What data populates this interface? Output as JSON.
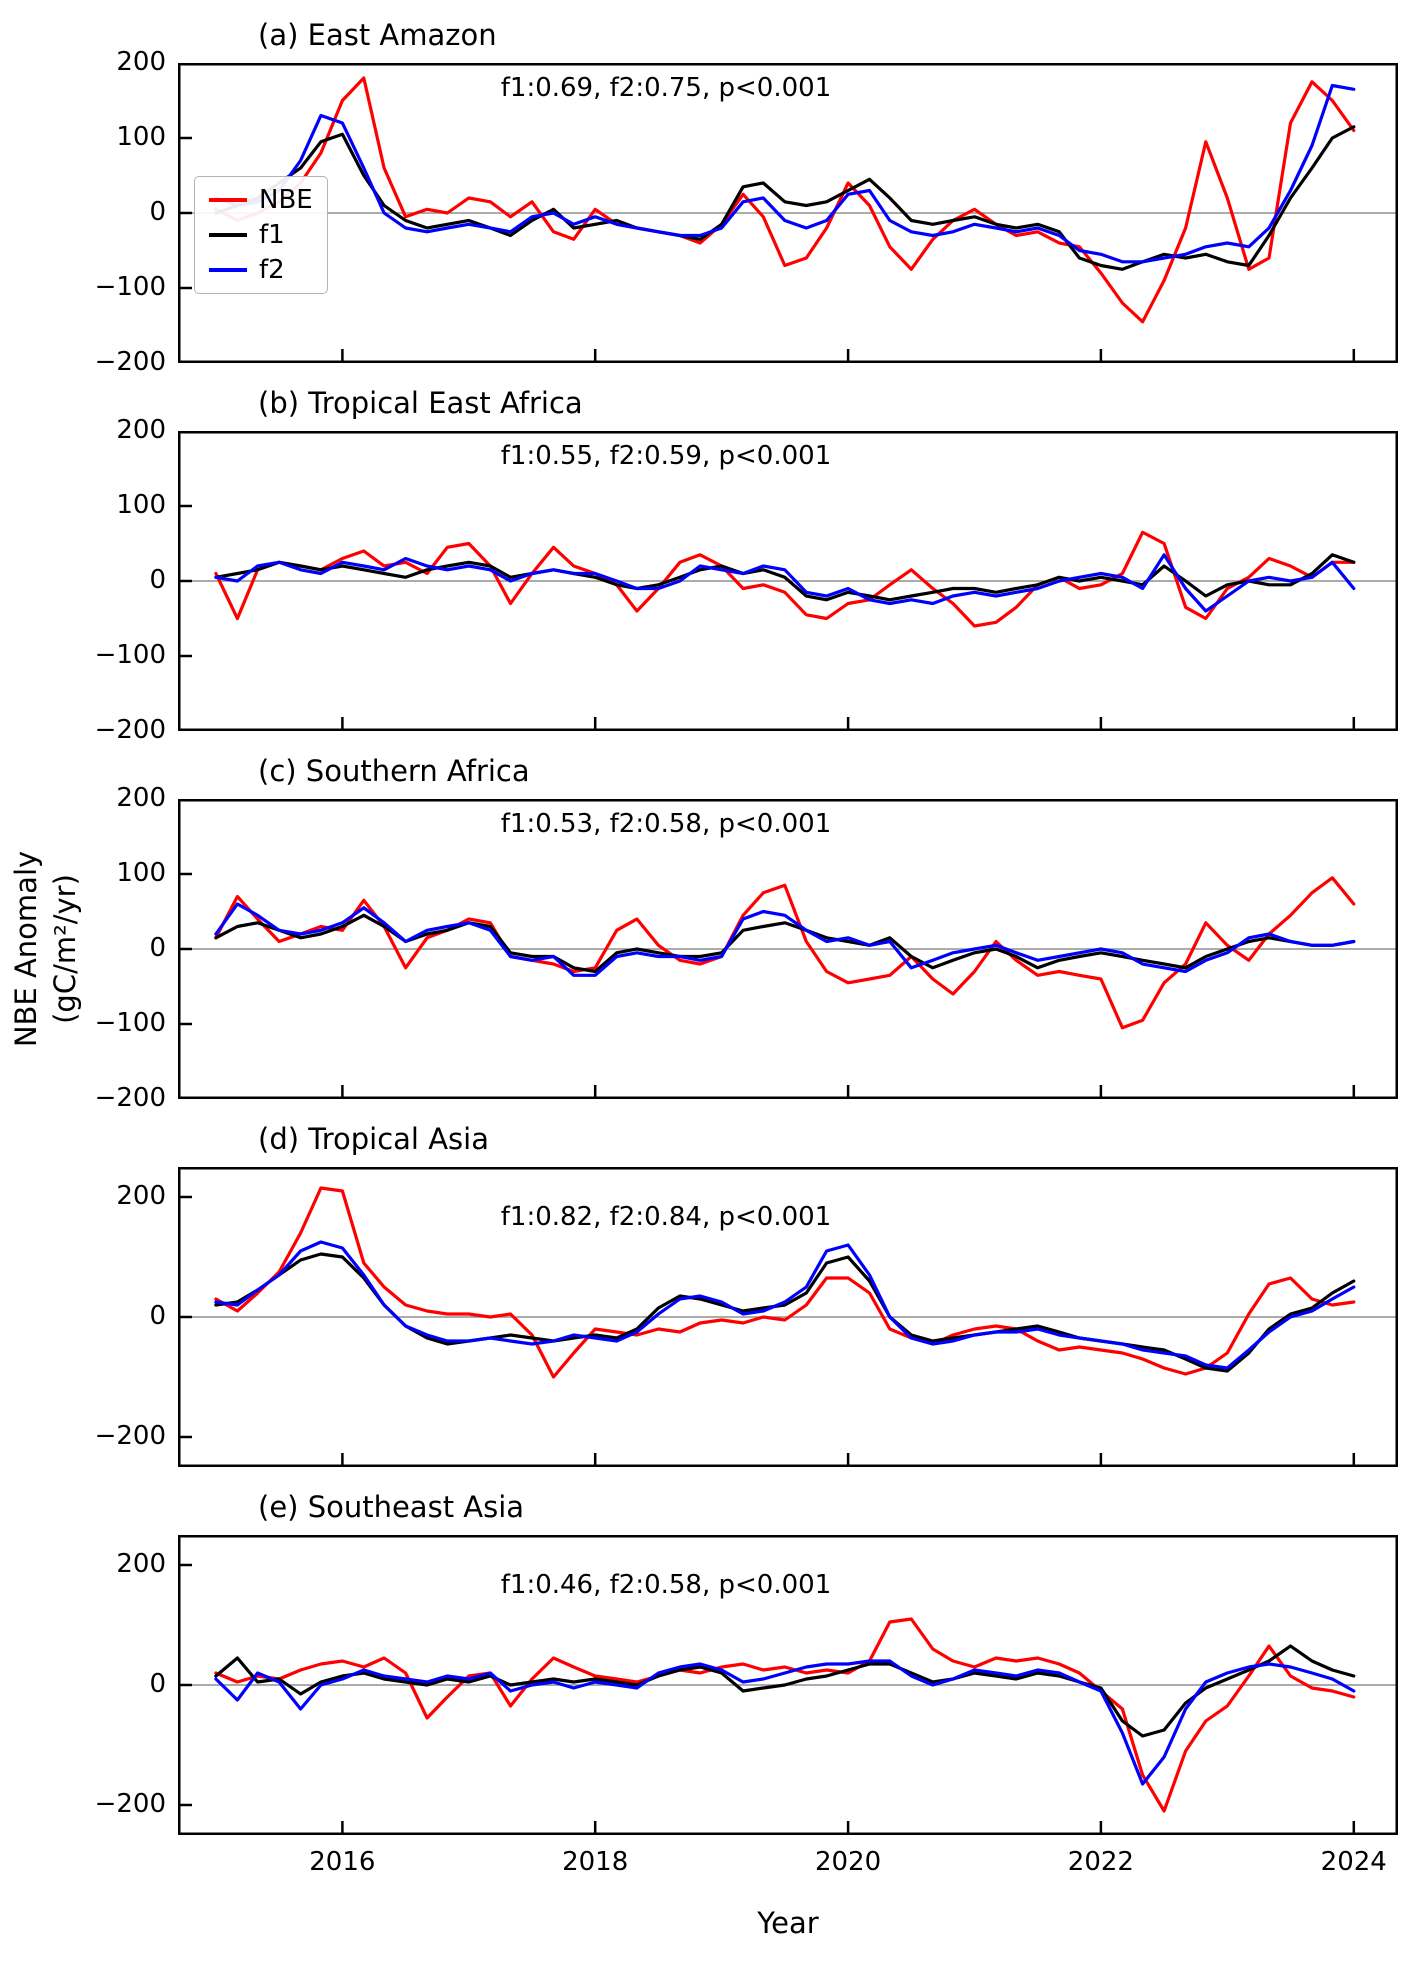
{
  "chart_data": {
    "type": "line",
    "x_label": "Year",
    "y_label": "NBE Anomaly (gC/m²/yr)",
    "y_label_line1": "NBE Anomaly",
    "y_label_line2": "(gC/m²/yr)",
    "legend_position": "left middle of panel (a)",
    "grid": false,
    "series_order": [
      "NBE",
      "f1",
      "f2"
    ],
    "colors": {
      "NBE": "#ff0000",
      "f1": "#000000",
      "f2": "#0000ff",
      "zero_line": "#909090",
      "axis": "#000000"
    },
    "xlim": [
      2014.7,
      2024.35
    ],
    "xticks": [
      2016,
      2018,
      2020,
      2022,
      2024
    ],
    "x": [
      2015.0,
      2015.17,
      2015.33,
      2015.5,
      2015.67,
      2015.83,
      2016.0,
      2016.17,
      2016.33,
      2016.5,
      2016.67,
      2016.83,
      2017.0,
      2017.17,
      2017.33,
      2017.5,
      2017.67,
      2017.83,
      2018.0,
      2018.17,
      2018.33,
      2018.5,
      2018.67,
      2018.83,
      2019.0,
      2019.17,
      2019.33,
      2019.5,
      2019.67,
      2019.83,
      2020.0,
      2020.17,
      2020.33,
      2020.5,
      2020.67,
      2020.83,
      2021.0,
      2021.17,
      2021.33,
      2021.5,
      2021.67,
      2021.83,
      2022.0,
      2022.17,
      2022.33,
      2022.5,
      2022.67,
      2022.83,
      2023.0,
      2023.17,
      2023.33,
      2023.5,
      2023.67,
      2023.83,
      2024.0
    ],
    "panels": [
      {
        "label": "(a) East Amazon",
        "annotation": "f1:0.69, f2:0.75, p<0.001",
        "ylim": [
          -200,
          200
        ],
        "yticks": [
          -200,
          -100,
          0,
          100,
          200
        ],
        "series": [
          {
            "name": "NBE",
            "values": [
              5,
              -10,
              0,
              15,
              40,
              80,
              150,
              180,
              60,
              -5,
              5,
              0,
              20,
              15,
              -5,
              15,
              -25,
              -35,
              5,
              -15,
              -20,
              -25,
              -30,
              -40,
              -15,
              25,
              -5,
              -70,
              -60,
              -20,
              40,
              10,
              -45,
              -75,
              -35,
              -10,
              5,
              -15,
              -30,
              -25,
              -40,
              -45,
              -80,
              -120,
              -145,
              -90,
              -20,
              95,
              20,
              -75,
              -60,
              120,
              175,
              150,
              110
            ]
          },
          {
            "name": "f1",
            "values": [
              0,
              10,
              20,
              40,
              60,
              95,
              105,
              50,
              10,
              -10,
              -20,
              -15,
              -10,
              -20,
              -30,
              -10,
              5,
              -20,
              -15,
              -10,
              -20,
              -25,
              -30,
              -35,
              -15,
              35,
              40,
              15,
              10,
              15,
              30,
              45,
              20,
              -10,
              -15,
              -10,
              -5,
              -15,
              -20,
              -15,
              -25,
              -60,
              -70,
              -75,
              -65,
              -55,
              -60,
              -55,
              -65,
              -70,
              -30,
              20,
              60,
              100,
              115
            ]
          },
          {
            "name": "f2",
            "values": [
              20,
              10,
              15,
              30,
              70,
              130,
              120,
              60,
              0,
              -20,
              -25,
              -20,
              -15,
              -20,
              -25,
              -5,
              0,
              -15,
              -5,
              -15,
              -20,
              -25,
              -30,
              -30,
              -20,
              15,
              20,
              -10,
              -20,
              -10,
              25,
              30,
              -10,
              -25,
              -30,
              -25,
              -15,
              -20,
              -25,
              -20,
              -30,
              -50,
              -55,
              -65,
              -65,
              -60,
              -55,
              -45,
              -40,
              -45,
              -20,
              30,
              90,
              170,
              165
            ]
          }
        ]
      },
      {
        "label": "(b) Tropical East Africa",
        "annotation": "f1:0.55, f2:0.59, p<0.001",
        "ylim": [
          -200,
          200
        ],
        "yticks": [
          -200,
          -100,
          0,
          100,
          200
        ],
        "series": [
          {
            "name": "NBE",
            "values": [
              10,
              -50,
              15,
              25,
              20,
              15,
              30,
              40,
              20,
              25,
              10,
              45,
              50,
              20,
              -30,
              10,
              45,
              20,
              10,
              -5,
              -40,
              -10,
              25,
              35,
              20,
              -10,
              -5,
              -15,
              -45,
              -50,
              -30,
              -25,
              -5,
              15,
              -10,
              -30,
              -60,
              -55,
              -35,
              -5,
              5,
              -10,
              -5,
              10,
              65,
              50,
              -35,
              -50,
              -10,
              5,
              30,
              20,
              5,
              25,
              25
            ]
          },
          {
            "name": "f1",
            "values": [
              5,
              10,
              15,
              25,
              20,
              15,
              20,
              15,
              10,
              5,
              15,
              20,
              25,
              20,
              5,
              10,
              15,
              10,
              5,
              -5,
              -10,
              -5,
              5,
              15,
              20,
              10,
              15,
              5,
              -20,
              -25,
              -15,
              -20,
              -25,
              -20,
              -15,
              -10,
              -10,
              -15,
              -10,
              -5,
              5,
              0,
              5,
              0,
              -5,
              20,
              0,
              -20,
              -5,
              0,
              -5,
              -5,
              10,
              35,
              25
            ]
          },
          {
            "name": "f2",
            "values": [
              5,
              0,
              20,
              25,
              15,
              10,
              25,
              20,
              15,
              30,
              20,
              15,
              20,
              15,
              0,
              10,
              15,
              10,
              10,
              0,
              -10,
              -10,
              0,
              20,
              15,
              10,
              20,
              15,
              -15,
              -20,
              -10,
              -25,
              -30,
              -25,
              -30,
              -20,
              -15,
              -20,
              -15,
              -10,
              0,
              5,
              10,
              5,
              -10,
              35,
              -10,
              -40,
              -20,
              0,
              5,
              0,
              5,
              25,
              -10
            ]
          }
        ]
      },
      {
        "label": "(c) Southern Africa",
        "annotation": "f1:0.53, f2:0.58, p<0.001",
        "ylim": [
          -200,
          200
        ],
        "yticks": [
          -200,
          -100,
          0,
          100,
          200
        ],
        "series": [
          {
            "name": "NBE",
            "values": [
              15,
              70,
              40,
              10,
              20,
              30,
              25,
              65,
              30,
              -25,
              15,
              25,
              40,
              35,
              -10,
              -15,
              -20,
              -30,
              -25,
              25,
              40,
              5,
              -15,
              -20,
              -10,
              45,
              75,
              85,
              10,
              -30,
              -45,
              -40,
              -35,
              -10,
              -40,
              -60,
              -30,
              10,
              -15,
              -35,
              -30,
              -35,
              -40,
              -105,
              -95,
              -45,
              -20,
              35,
              5,
              -15,
              20,
              45,
              75,
              95,
              60
            ]
          },
          {
            "name": "f1",
            "values": [
              15,
              30,
              35,
              25,
              15,
              20,
              30,
              45,
              30,
              10,
              20,
              25,
              35,
              30,
              -5,
              -10,
              -10,
              -25,
              -30,
              -5,
              0,
              -5,
              -10,
              -10,
              -5,
              25,
              30,
              35,
              25,
              15,
              10,
              5,
              15,
              -10,
              -25,
              -15,
              -5,
              0,
              -10,
              -25,
              -15,
              -10,
              -5,
              -10,
              -15,
              -20,
              -25,
              -10,
              0,
              10,
              15,
              10,
              5,
              5,
              10
            ]
          },
          {
            "name": "f2",
            "values": [
              20,
              60,
              45,
              25,
              20,
              25,
              35,
              55,
              35,
              10,
              25,
              30,
              35,
              25,
              -10,
              -15,
              -10,
              -35,
              -35,
              -10,
              -5,
              -10,
              -10,
              -15,
              -10,
              40,
              50,
              45,
              25,
              10,
              15,
              5,
              10,
              -25,
              -15,
              -5,
              0,
              5,
              -5,
              -15,
              -10,
              -5,
              0,
              -5,
              -20,
              -25,
              -30,
              -15,
              -5,
              15,
              20,
              10,
              5,
              5,
              10
            ]
          }
        ]
      },
      {
        "label": "(d) Tropical Asia",
        "annotation": "f1:0.82, f2:0.84, p<0.001",
        "ylim": [
          -250,
          250
        ],
        "yticks": [
          -200,
          0,
          200
        ],
        "series": [
          {
            "name": "NBE",
            "values": [
              30,
              10,
              40,
              75,
              140,
              215,
              210,
              90,
              50,
              20,
              10,
              5,
              5,
              0,
              5,
              -30,
              -100,
              -60,
              -20,
              -25,
              -30,
              -20,
              -25,
              -10,
              -5,
              -10,
              0,
              -5,
              20,
              65,
              65,
              40,
              -20,
              -35,
              -45,
              -30,
              -20,
              -15,
              -20,
              -40,
              -55,
              -50,
              -55,
              -60,
              -70,
              -85,
              -95,
              -85,
              -60,
              5,
              55,
              65,
              30,
              20,
              25
            ]
          },
          {
            "name": "f1",
            "values": [
              20,
              25,
              45,
              70,
              95,
              105,
              100,
              65,
              20,
              -15,
              -35,
              -45,
              -40,
              -35,
              -30,
              -35,
              -40,
              -35,
              -30,
              -35,
              -20,
              15,
              35,
              30,
              20,
              10,
              15,
              20,
              40,
              90,
              100,
              60,
              0,
              -30,
              -40,
              -35,
              -30,
              -25,
              -20,
              -15,
              -25,
              -35,
              -40,
              -45,
              -50,
              -55,
              -70,
              -85,
              -90,
              -60,
              -20,
              5,
              15,
              40,
              60
            ]
          },
          {
            "name": "f2",
            "values": [
              25,
              20,
              45,
              70,
              110,
              125,
              115,
              70,
              20,
              -15,
              -30,
              -40,
              -40,
              -35,
              -40,
              -45,
              -40,
              -30,
              -35,
              -40,
              -25,
              5,
              30,
              35,
              25,
              5,
              10,
              25,
              50,
              110,
              120,
              70,
              0,
              -35,
              -45,
              -40,
              -30,
              -25,
              -25,
              -20,
              -30,
              -35,
              -40,
              -45,
              -55,
              -60,
              -65,
              -80,
              -85,
              -55,
              -25,
              0,
              10,
              30,
              50
            ]
          }
        ]
      },
      {
        "label": "(e) Southeast Asia",
        "annotation": "f1:0.46, f2:0.58, p<0.001",
        "ylim": [
          -250,
          250
        ],
        "yticks": [
          -200,
          0,
          200
        ],
        "series": [
          {
            "name": "NBE",
            "values": [
              20,
              5,
              15,
              10,
              25,
              35,
              40,
              30,
              45,
              20,
              -55,
              -20,
              15,
              20,
              -35,
              10,
              45,
              30,
              15,
              10,
              5,
              15,
              25,
              20,
              30,
              35,
              25,
              30,
              20,
              25,
              20,
              40,
              105,
              110,
              60,
              40,
              30,
              45,
              40,
              45,
              35,
              20,
              -10,
              -40,
              -150,
              -210,
              -110,
              -60,
              -35,
              15,
              65,
              15,
              -5,
              -10,
              -20
            ]
          },
          {
            "name": "f1",
            "values": [
              15,
              45,
              5,
              10,
              -15,
              5,
              15,
              20,
              10,
              5,
              0,
              10,
              5,
              15,
              0,
              5,
              10,
              5,
              10,
              5,
              0,
              15,
              25,
              30,
              20,
              -10,
              -5,
              0,
              10,
              15,
              25,
              35,
              35,
              20,
              5,
              10,
              20,
              15,
              10,
              20,
              15,
              5,
              -5,
              -60,
              -85,
              -75,
              -30,
              -5,
              10,
              25,
              40,
              65,
              40,
              25,
              15
            ]
          },
          {
            "name": "f2",
            "values": [
              10,
              -25,
              20,
              5,
              -40,
              0,
              10,
              25,
              15,
              10,
              5,
              15,
              10,
              20,
              -10,
              0,
              5,
              -5,
              5,
              0,
              -5,
              20,
              30,
              35,
              25,
              5,
              10,
              20,
              30,
              35,
              35,
              40,
              40,
              15,
              0,
              10,
              25,
              20,
              15,
              25,
              20,
              5,
              -10,
              -80,
              -165,
              -120,
              -40,
              5,
              20,
              30,
              35,
              30,
              20,
              10,
              -10
            ]
          }
        ]
      }
    ]
  }
}
